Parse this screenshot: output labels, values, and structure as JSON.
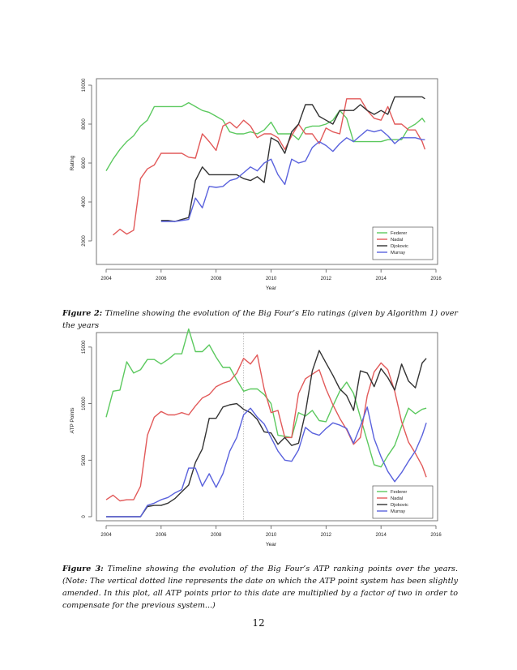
{
  "page": {
    "number": "12",
    "caption1": {
      "label": "Figure 2:",
      "text": "Timeline showing the evolution of the Big Four’s Elo ratings (given by Algorithm 1) over the years"
    },
    "caption2": {
      "label": "Figure 3:",
      "text": "Timeline showing the evolution of the Big Four’s ATP ranking points over the years. (Note: The vertical dotted line represents the date on which the ATP point system has been slightly amended. In this plot, all ATP points prior to this date are multiplied by a factor of two in order to compensate for the previous system...)"
    }
  },
  "chart_data": [
    {
      "type": "line",
      "title": "",
      "xlabel": "Year",
      "ylabel": "Rating",
      "xlim": [
        2004,
        2016
      ],
      "ylim": [
        2000,
        10000
      ],
      "xticks": [
        2004,
        2006,
        2008,
        2010,
        2012,
        2014,
        2016
      ],
      "yticks": [
        2000,
        4000,
        6000,
        8000,
        10000
      ],
      "legend_position": "bottom-right",
      "grid": false,
      "series": [
        {
          "name": "Federer",
          "color": "#5cc95f",
          "x": [
            2004.0,
            2004.25,
            2004.5,
            2004.75,
            2005.0,
            2005.25,
            2005.5,
            2005.75,
            2006.0,
            2006.25,
            2006.5,
            2006.75,
            2007.0,
            2007.25,
            2007.5,
            2007.75,
            2008.0,
            2008.25,
            2008.5,
            2008.75,
            2009.0,
            2009.25,
            2009.5,
            2009.75,
            2010.0,
            2010.25,
            2010.5,
            2010.75,
            2011.0,
            2011.25,
            2011.5,
            2011.75,
            2012.0,
            2012.25,
            2012.5,
            2012.75,
            2013.0,
            2013.25,
            2013.5,
            2013.75,
            2014.0,
            2014.25,
            2014.5,
            2014.75,
            2015.0,
            2015.25,
            2015.5,
            2015.6
          ],
          "y": [
            5600,
            6200,
            6700,
            7100,
            7400,
            7900,
            8200,
            8900,
            8900,
            8900,
            8900,
            8900,
            9100,
            8900,
            8700,
            8600,
            8400,
            8200,
            7600,
            7500,
            7500,
            7600,
            7500,
            7700,
            8100,
            7500,
            7500,
            7500,
            7200,
            7800,
            7900,
            7900,
            8000,
            8200,
            8700,
            8300,
            7100,
            7100,
            7100,
            7100,
            7100,
            7200,
            7200,
            7200,
            7800,
            8000,
            8300,
            8100
          ]
        },
        {
          "name": "Nadal",
          "color": "#e25a5a",
          "x": [
            2004.25,
            2004.5,
            2004.75,
            2005.0,
            2005.25,
            2005.5,
            2005.75,
            2006.0,
            2006.25,
            2006.5,
            2006.75,
            2007.0,
            2007.25,
            2007.5,
            2007.75,
            2008.0,
            2008.25,
            2008.5,
            2008.75,
            2009.0,
            2009.25,
            2009.5,
            2009.75,
            2010.0,
            2010.25,
            2010.5,
            2010.75,
            2011.0,
            2011.25,
            2011.5,
            2011.75,
            2012.0,
            2012.25,
            2012.5,
            2012.75,
            2013.0,
            2013.25,
            2013.5,
            2013.75,
            2014.0,
            2014.25,
            2014.5,
            2014.75,
            2015.0,
            2015.25,
            2015.5,
            2015.6
          ],
          "y": [
            2300,
            2600,
            2350,
            2550,
            5200,
            5700,
            5900,
            6500,
            6500,
            6500,
            6500,
            6300,
            6250,
            7500,
            7100,
            6650,
            7900,
            8100,
            7800,
            8200,
            7900,
            7300,
            7500,
            7500,
            7300,
            6700,
            7400,
            8000,
            7500,
            7500,
            7000,
            7800,
            7600,
            7500,
            9300,
            9300,
            9300,
            8700,
            8300,
            8200,
            8900,
            8000,
            8000,
            7700,
            7700,
            7100,
            6700
          ]
        },
        {
          "name": "Djokovic",
          "color": "#333333",
          "x": [
            2006.0,
            2006.25,
            2006.5,
            2006.75,
            2007.0,
            2007.25,
            2007.5,
            2007.75,
            2008.0,
            2008.25,
            2008.5,
            2008.75,
            2009.0,
            2009.25,
            2009.5,
            2009.75,
            2010.0,
            2010.25,
            2010.5,
            2010.75,
            2011.0,
            2011.25,
            2011.5,
            2011.75,
            2012.0,
            2012.25,
            2012.5,
            2012.75,
            2013.0,
            2013.25,
            2013.5,
            2013.75,
            2014.0,
            2014.25,
            2014.5,
            2014.75,
            2015.0,
            2015.25,
            2015.5,
            2015.6
          ],
          "y": [
            3050,
            3050,
            3000,
            3100,
            3200,
            5100,
            5800,
            5400,
            5400,
            5400,
            5400,
            5400,
            5200,
            5100,
            5300,
            5000,
            7300,
            7100,
            6500,
            7600,
            8000,
            9000,
            9000,
            8400,
            8200,
            8000,
            8700,
            8700,
            8700,
            9000,
            8700,
            8500,
            8700,
            8500,
            9400,
            9400,
            9400,
            9400,
            9400,
            9300
          ]
        },
        {
          "name": "Murray",
          "color": "#5a62dd",
          "x": [
            2006.0,
            2006.25,
            2006.5,
            2006.75,
            2007.0,
            2007.25,
            2007.5,
            2007.75,
            2008.0,
            2008.25,
            2008.5,
            2008.75,
            2009.0,
            2009.25,
            2009.5,
            2009.75,
            2010.0,
            2010.25,
            2010.5,
            2010.75,
            2011.0,
            2011.25,
            2011.5,
            2011.75,
            2012.0,
            2012.25,
            2012.5,
            2012.75,
            2013.0,
            2013.25,
            2013.5,
            2013.75,
            2014.0,
            2014.25,
            2014.5,
            2014.75,
            2015.0,
            2015.25,
            2015.5,
            2015.6
          ],
          "y": [
            3000,
            3000,
            3000,
            3050,
            3100,
            4200,
            3700,
            4800,
            4750,
            4800,
            5100,
            5200,
            5500,
            5800,
            5600,
            6000,
            6200,
            5400,
            4900,
            6200,
            6000,
            6100,
            6800,
            7100,
            6900,
            6600,
            7000,
            7300,
            7100,
            7400,
            7700,
            7600,
            7700,
            7400,
            7000,
            7300,
            7300,
            7300,
            7200,
            7200
          ]
        }
      ]
    },
    {
      "type": "line",
      "title": "",
      "xlabel": "Year",
      "ylabel": "ATP Points",
      "xlim": [
        2004,
        2016
      ],
      "ylim": [
        0,
        17000
      ],
      "xticks": [
        2004,
        2006,
        2008,
        2010,
        2012,
        2014,
        2016
      ],
      "yticks": [
        0,
        5000,
        10000,
        15000
      ],
      "legend_position": "bottom-right",
      "grid": false,
      "vline_x": 2009.0,
      "series": [
        {
          "name": "Federer",
          "color": "#5cc95f",
          "x": [
            2004.0,
            2004.25,
            2004.5,
            2004.75,
            2005.0,
            2005.25,
            2005.5,
            2005.75,
            2006.0,
            2006.25,
            2006.5,
            2006.75,
            2007.0,
            2007.25,
            2007.5,
            2007.75,
            2008.0,
            2008.25,
            2008.5,
            2008.75,
            2009.0,
            2009.25,
            2009.5,
            2009.75,
            2010.0,
            2010.25,
            2010.5,
            2010.75,
            2011.0,
            2011.25,
            2011.5,
            2011.75,
            2012.0,
            2012.25,
            2012.5,
            2012.75,
            2013.0,
            2013.25,
            2013.5,
            2013.75,
            2014.0,
            2014.25,
            2014.5,
            2014.75,
            2015.0,
            2015.25,
            2015.5,
            2015.65
          ],
          "y": [
            8800,
            11100,
            11200,
            13700,
            12700,
            13000,
            13900,
            13900,
            13500,
            13900,
            14400,
            14400,
            16600,
            14600,
            14600,
            15200,
            14100,
            13200,
            13200,
            12100,
            11100,
            11300,
            11300,
            10800,
            10000,
            7200,
            7100,
            7000,
            9200,
            8900,
            9400,
            8500,
            8400,
            9800,
            11100,
            11900,
            10900,
            8800,
            6700,
            4600,
            4400,
            5400,
            6300,
            8000,
            9600,
            9100,
            9500,
            9600
          ]
        },
        {
          "name": "Nadal",
          "color": "#e25a5a",
          "x": [
            2004.0,
            2004.25,
            2004.5,
            2004.75,
            2005.0,
            2005.25,
            2005.5,
            2005.75,
            2006.0,
            2006.25,
            2006.5,
            2006.75,
            2007.0,
            2007.25,
            2007.5,
            2007.75,
            2008.0,
            2008.25,
            2008.5,
            2008.75,
            2009.0,
            2009.25,
            2009.5,
            2009.75,
            2010.0,
            2010.25,
            2010.5,
            2010.75,
            2011.0,
            2011.25,
            2011.5,
            2011.75,
            2012.0,
            2012.25,
            2012.5,
            2012.75,
            2013.0,
            2013.25,
            2013.5,
            2013.75,
            2014.0,
            2014.25,
            2014.5,
            2014.75,
            2015.0,
            2015.25,
            2015.5,
            2015.65
          ],
          "y": [
            1500,
            1900,
            1400,
            1500,
            1500,
            2700,
            7200,
            8800,
            9300,
            9000,
            9000,
            9200,
            9000,
            9800,
            10500,
            10800,
            11500,
            11800,
            12000,
            12700,
            14000,
            13500,
            14300,
            11300,
            9200,
            9400,
            7000,
            7000,
            10900,
            12200,
            12600,
            13000,
            11300,
            9900,
            8700,
            7700,
            6400,
            7000,
            10700,
            12800,
            13600,
            13000,
            11100,
            8400,
            6600,
            5600,
            4500,
            3500
          ]
        },
        {
          "name": "Djokovic",
          "color": "#333333",
          "x": [
            2004.0,
            2004.25,
            2004.5,
            2004.75,
            2005.0,
            2005.25,
            2005.5,
            2005.75,
            2006.0,
            2006.25,
            2006.5,
            2006.75,
            2007.0,
            2007.25,
            2007.5,
            2007.75,
            2008.0,
            2008.25,
            2008.5,
            2008.75,
            2009.0,
            2009.25,
            2009.5,
            2009.75,
            2010.0,
            2010.25,
            2010.5,
            2010.75,
            2011.0,
            2011.25,
            2011.5,
            2011.75,
            2012.0,
            2012.25,
            2012.5,
            2012.75,
            2013.0,
            2013.25,
            2013.5,
            2013.75,
            2014.0,
            2014.25,
            2014.5,
            2014.75,
            2015.0,
            2015.25,
            2015.5,
            2015.65
          ],
          "y": [
            0,
            0,
            0,
            0,
            0,
            0,
            900,
            1000,
            1000,
            1200,
            1600,
            2200,
            2800,
            4800,
            6000,
            8700,
            8700,
            9700,
            9900,
            10000,
            9500,
            9200,
            8600,
            7500,
            7400,
            6400,
            7000,
            6300,
            6500,
            9200,
            12900,
            14700,
            13600,
            12500,
            11300,
            10700,
            9400,
            12900,
            12700,
            11500,
            13100,
            12300,
            11200,
            13500,
            12000,
            11400,
            13600,
            14000
          ]
        },
        {
          "name": "Murray",
          "color": "#5a62dd",
          "x": [
            2004.0,
            2004.25,
            2004.5,
            2004.75,
            2005.0,
            2005.25,
            2005.5,
            2005.75,
            2006.0,
            2006.25,
            2006.5,
            2006.75,
            2007.0,
            2007.25,
            2007.5,
            2007.75,
            2008.0,
            2008.25,
            2008.5,
            2008.75,
            2009.0,
            2009.25,
            2009.5,
            2009.75,
            2010.0,
            2010.25,
            2010.5,
            2010.75,
            2011.0,
            2011.25,
            2011.5,
            2011.75,
            2012.0,
            2012.25,
            2012.5,
            2012.75,
            2013.0,
            2013.25,
            2013.5,
            2013.75,
            2014.0,
            2014.25,
            2014.5,
            2014.75,
            2015.0,
            2015.25,
            2015.5,
            2015.65
          ],
          "y": [
            0,
            0,
            0,
            0,
            0,
            0,
            1000,
            1200,
            1500,
            1700,
            2100,
            2400,
            4300,
            4300,
            2700,
            3800,
            2600,
            3800,
            5800,
            7000,
            9000,
            9600,
            8800,
            8200,
            7000,
            5800,
            5000,
            4900,
            5900,
            7900,
            7400,
            7200,
            7800,
            8300,
            8100,
            7800,
            6500,
            8000,
            9700,
            6900,
            5300,
            4000,
            3100,
            3900,
            4900,
            5800,
            7200,
            8300
          ]
        }
      ]
    }
  ]
}
